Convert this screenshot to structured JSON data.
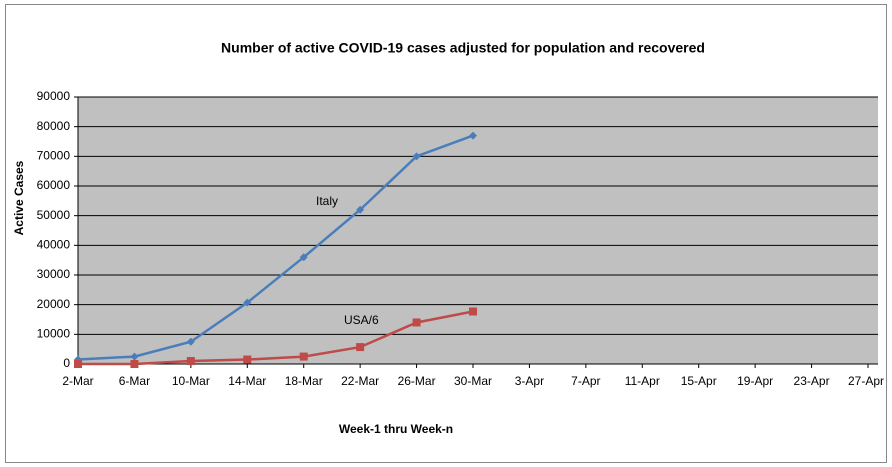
{
  "chart_data": {
    "type": "line",
    "title": "Number of active COVID-19 cases adjusted for population and recovered",
    "x_label": "Week-1 thru Week-n",
    "y_label": "Active Cases",
    "categories": [
      "2-Mar",
      "6-Mar",
      "10-Mar",
      "14-Mar",
      "18-Mar",
      "22-Mar",
      "26-Mar",
      "30-Mar",
      "3-Apr",
      "7-Apr",
      "11-Apr",
      "15-Apr",
      "19-Apr",
      "23-Apr",
      "27-Apr"
    ],
    "series": [
      {
        "name": "Italy",
        "color": "#4a7ebb",
        "marker": "diamond",
        "values": [
          1500,
          2500,
          7500,
          20700,
          36000,
          52000,
          70000,
          77000,
          null,
          null,
          null,
          null,
          null,
          null,
          null
        ]
      },
      {
        "name": "USA/6",
        "color": "#be4b48",
        "marker": "square",
        "values": [
          0,
          0,
          1000,
          1500,
          2500,
          5700,
          14000,
          17700,
          null,
          null,
          null,
          null,
          null,
          null,
          null
        ]
      }
    ],
    "ylim": [
      0,
      90000
    ],
    "yticks": [
      0,
      10000,
      20000,
      30000,
      40000,
      50000,
      60000,
      70000,
      80000,
      90000
    ],
    "grid": true,
    "legend": false
  }
}
